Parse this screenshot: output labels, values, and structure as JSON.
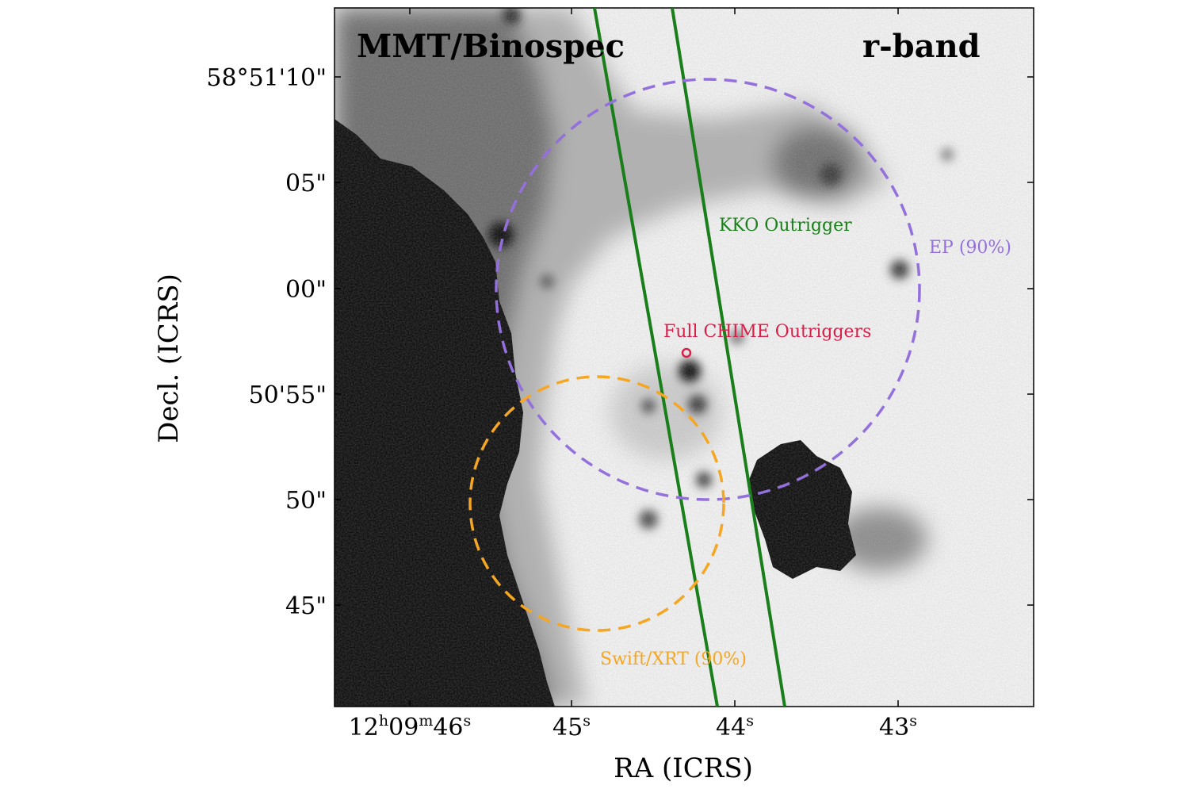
{
  "panel": {
    "instrument_label": "MMT/Binospec",
    "band_label": "r-band"
  },
  "axes": {
    "x_label": "RA (ICRS)",
    "y_label": "Decl. (ICRS)",
    "x_ticks": [
      {
        "h": "12",
        "m": "09",
        "s": "46"
      },
      {
        "s": "45"
      },
      {
        "s": "44"
      },
      {
        "s": "43"
      }
    ],
    "y_ticks": [
      "58°51'10\"",
      "05\"",
      "00\"",
      "50'55\"",
      "50\"",
      "45\""
    ]
  },
  "overlays": {
    "kko_label": "KKO Outrigger",
    "ep_label": "EP (90%)",
    "chime_label": "Full CHIME Outriggers",
    "swift_label": "Swift/XRT (90%)"
  },
  "colors": {
    "kko": "#1a7f1a",
    "ep": "#9370db",
    "chime": "#d6204a",
    "swift": "#f5a623"
  }
}
